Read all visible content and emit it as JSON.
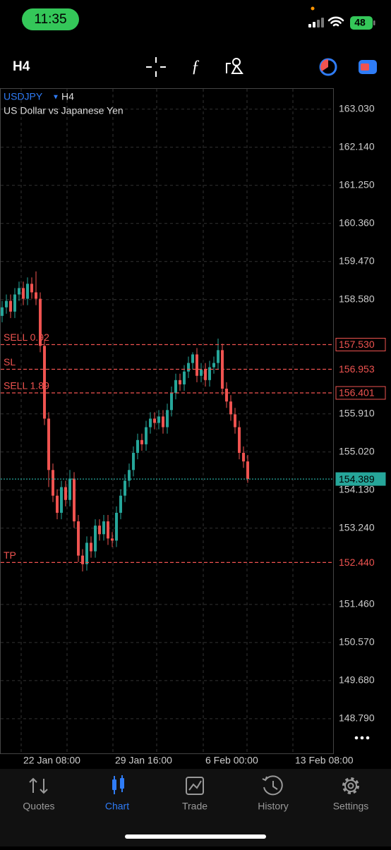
{
  "status_bar": {
    "time": "11:35",
    "battery": "48"
  },
  "toolbar": {
    "timeframe": "H4"
  },
  "chart_data": {
    "type": "candlestick",
    "symbol": "USDJPY",
    "timeframe": "H4",
    "title": "US Dollar vs Japanese Yen",
    "colors": {
      "up": "#26a69a",
      "down": "#ef5350"
    },
    "open": [
      158.2,
      158.4,
      158.55,
      158.3,
      158.7,
      158.85,
      158.6,
      158.95,
      158.75,
      158.6,
      157.5,
      155.8,
      154.6,
      154.0,
      153.6,
      154.2,
      153.9,
      154.4,
      153.4,
      152.6,
      152.4,
      152.9,
      152.7,
      153.3,
      153.1,
      153.4,
      153.0,
      152.95,
      153.6,
      154.0,
      154.35,
      154.6,
      155.0,
      155.3,
      155.2,
      155.6,
      155.8,
      155.7,
      155.85,
      155.6,
      156.0,
      156.4,
      156.7,
      156.6,
      156.9,
      157.1,
      157.3,
      156.8,
      156.95,
      156.7,
      157.0,
      157.1,
      157.4,
      156.5,
      156.2,
      155.9,
      155.6,
      155.0,
      154.8
    ],
    "high": [
      158.55,
      158.7,
      158.7,
      158.85,
      159.0,
      159.0,
      159.1,
      159.1,
      159.24,
      158.75,
      157.65,
      155.95,
      154.75,
      154.15,
      154.35,
      154.35,
      154.6,
      154.55,
      153.55,
      152.75,
      153.05,
      153.05,
      153.45,
      153.45,
      153.55,
      153.55,
      153.15,
      153.75,
      154.15,
      154.5,
      154.75,
      155.15,
      155.45,
      155.45,
      155.75,
      155.95,
      155.95,
      156.0,
      156.0,
      156.15,
      156.55,
      156.85,
      156.85,
      157.05,
      157.25,
      157.35,
      157.45,
      157.1,
      157.1,
      157.15,
      157.25,
      157.67,
      157.55,
      156.65,
      156.35,
      156.05,
      155.75,
      155.15,
      154.95
    ],
    "low": [
      158.05,
      158.25,
      158.15,
      158.15,
      158.55,
      158.45,
      158.45,
      158.6,
      158.45,
      157.35,
      155.65,
      154.2,
      153.85,
      153.45,
      153.45,
      153.75,
      153.75,
      153.25,
      152.45,
      152.23,
      152.25,
      152.55,
      152.55,
      152.95,
      152.95,
      152.85,
      152.8,
      152.8,
      153.45,
      153.85,
      154.2,
      154.45,
      154.85,
      155.05,
      155.05,
      155.45,
      155.55,
      155.55,
      155.45,
      155.45,
      155.85,
      156.25,
      156.45,
      156.45,
      156.75,
      156.95,
      156.65,
      156.65,
      156.55,
      156.55,
      156.85,
      156.95,
      156.35,
      156.05,
      155.75,
      155.45,
      154.85,
      154.65,
      154.3
    ],
    "close": [
      158.4,
      158.55,
      158.3,
      158.7,
      158.85,
      158.6,
      158.95,
      158.75,
      158.6,
      157.5,
      155.8,
      154.6,
      154.0,
      153.6,
      154.2,
      153.9,
      154.4,
      153.4,
      152.6,
      152.4,
      152.9,
      152.7,
      153.3,
      153.1,
      153.4,
      153.0,
      152.95,
      153.6,
      154.0,
      154.35,
      154.6,
      155.0,
      155.3,
      155.2,
      155.6,
      155.8,
      155.7,
      155.85,
      155.6,
      156.0,
      156.4,
      156.7,
      156.6,
      156.9,
      157.1,
      157.3,
      156.8,
      156.95,
      156.7,
      157.0,
      157.1,
      157.4,
      156.5,
      156.2,
      155.9,
      155.6,
      155.0,
      154.8,
      154.389
    ],
    "ylim": [
      147.98,
      163.52
    ],
    "yticks": [
      {
        "value": 163.03,
        "label": "163.030"
      },
      {
        "value": 162.14,
        "label": "162.140"
      },
      {
        "value": 161.25,
        "label": "161.250"
      },
      {
        "value": 160.36,
        "label": "160.360"
      },
      {
        "value": 159.47,
        "label": "159.470"
      },
      {
        "value": 158.58,
        "label": "158.580"
      },
      {
        "value": 155.91,
        "label": "155.910"
      },
      {
        "value": 155.02,
        "label": "155.020"
      },
      {
        "value": 154.13,
        "label": "154.130"
      },
      {
        "value": 153.24,
        "label": "153.240"
      },
      {
        "value": 151.46,
        "label": "151.460"
      },
      {
        "value": 150.57,
        "label": "150.570"
      },
      {
        "value": 149.68,
        "label": "149.680"
      },
      {
        "value": 148.79,
        "label": "148.790"
      }
    ],
    "x_labels": [
      "22 Jan 08:00",
      "29 Jan 16:00",
      "6 Feb 00:00",
      "13 Feb 08:00"
    ],
    "grid": true,
    "levels": [
      {
        "name": "SELL 0.92",
        "value": 157.53,
        "label": "157.530",
        "color": "#ef5350",
        "boxed": true
      },
      {
        "name": "SL",
        "value": 156.953,
        "label": "156.953",
        "color": "#ef5350",
        "boxed": false
      },
      {
        "name": "SELL 1.89",
        "value": 156.401,
        "label": "156.401",
        "color": "#ef5350",
        "boxed": true
      },
      {
        "value": 154.389,
        "label": "154.389",
        "color": "#26a69a",
        "boxed": true
      },
      {
        "name": "TP",
        "value": 152.44,
        "label": "152.440",
        "color": "#ef5350",
        "boxed": false
      }
    ]
  },
  "tabs": [
    "Quotes",
    "Chart",
    "Trade",
    "History",
    "Settings"
  ]
}
